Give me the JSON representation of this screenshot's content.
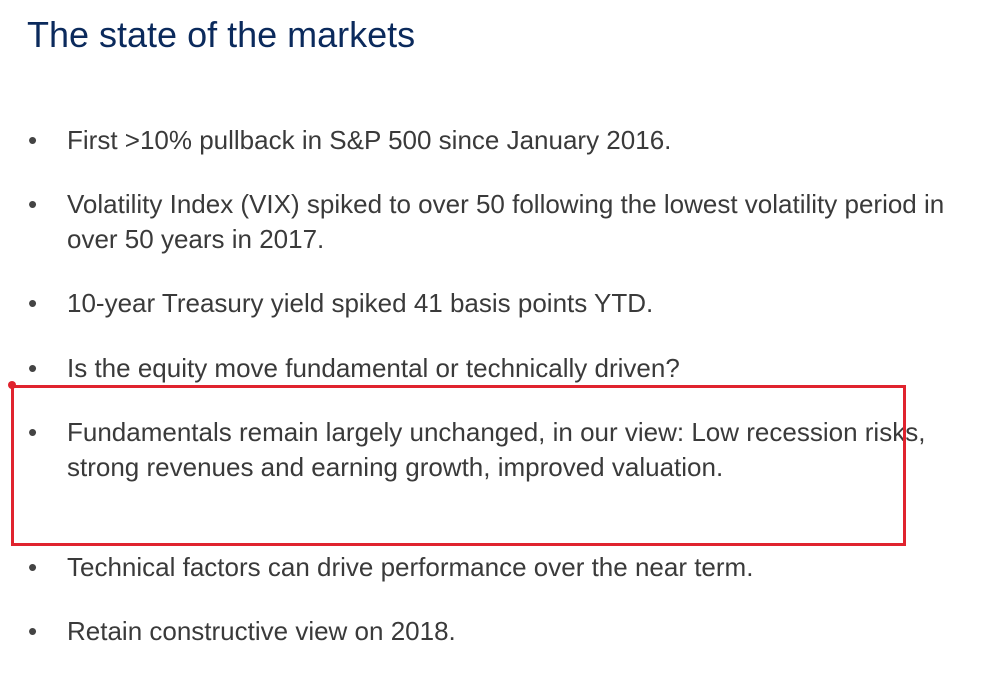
{
  "slide": {
    "title": "The state of the markets",
    "bullet_symbol": "•",
    "bullets": [
      {
        "text": "First >10% pullback in S&P 500 since January 2016."
      },
      {
        "text": "Volatility Index (VIX) spiked to over 50 following the lowest volatility period in over 50 years in 2017."
      },
      {
        "text": "10-year Treasury yield spiked 41 basis points YTD."
      },
      {
        "text": "Is the equity move fundamental or technically driven?"
      },
      {
        "text": "Fundamentals remain largely unchanged, in our view: Low recession risks, strong revenues and earning growth, improved valuation."
      },
      {
        "text": "Technical factors can drive performance over the near term."
      },
      {
        "text": "Retain constructive view on 2018."
      }
    ],
    "annotation": {
      "color": "#e0232e"
    }
  }
}
